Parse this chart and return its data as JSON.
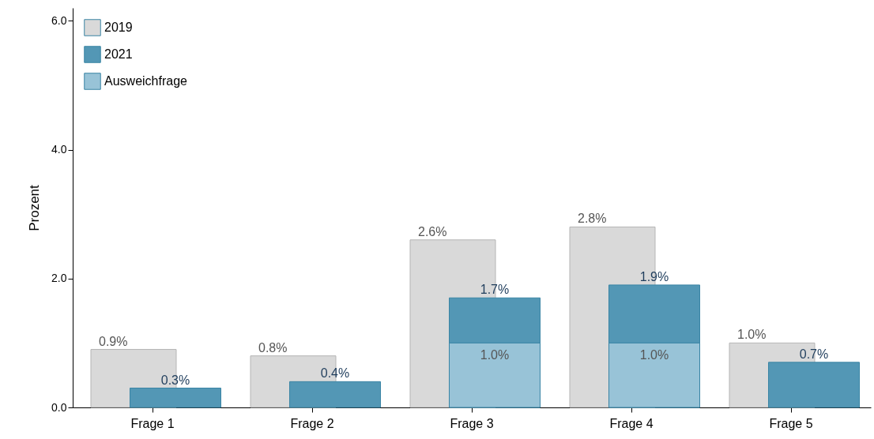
{
  "chart_data": {
    "type": "bar",
    "ylabel": "Prozent",
    "categories": [
      "Frage 1",
      "Frage 2",
      "Frage 3",
      "Frage 4",
      "Frage 5"
    ],
    "series": [
      {
        "name": "2019",
        "color": "#d9d9d9",
        "values": [
          0.9,
          0.8,
          2.6,
          2.8,
          1.0
        ],
        "value_labels": [
          "0.9%",
          "0.8%",
          "2.6%",
          "2.8%",
          "1.0%"
        ]
      },
      {
        "name": "2021",
        "color": "#5397b5",
        "values": [
          0.3,
          0.4,
          1.7,
          1.9,
          0.7
        ],
        "value_labels": [
          "0.3%",
          "0.4%",
          "1.7%",
          "1.9%",
          "0.7%"
        ]
      },
      {
        "name": "Ausweichfrage",
        "color": "#98c3d7",
        "values": [
          null,
          null,
          1.0,
          1.0,
          null
        ],
        "value_labels": [
          null,
          null,
          "1.0%",
          "1.0%",
          null
        ]
      }
    ],
    "ylim": [
      0,
      6.2
    ],
    "yticks": [
      {
        "value": 0,
        "label": "0.0"
      },
      {
        "value": 2,
        "label": "2.0"
      },
      {
        "value": 4,
        "label": "4.0"
      },
      {
        "value": 6,
        "label": "6.0"
      }
    ],
    "grid": false,
    "legend": "top left"
  }
}
